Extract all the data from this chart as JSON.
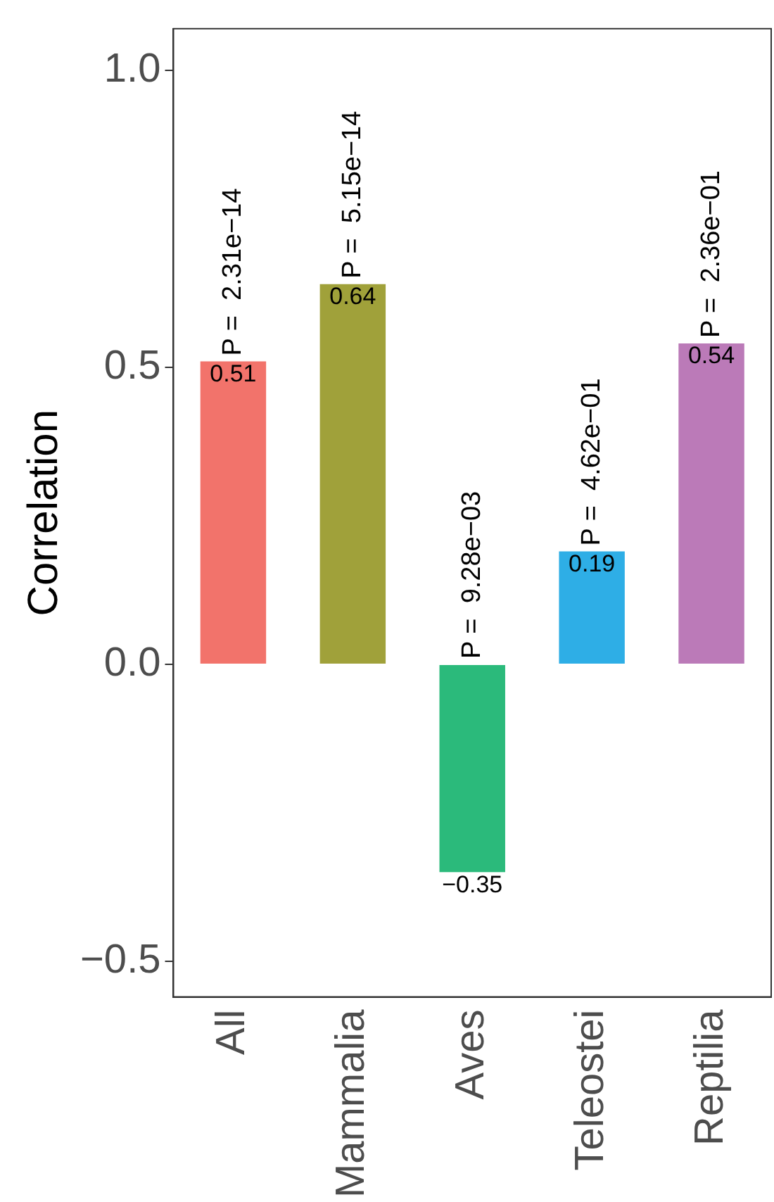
{
  "chart_data": {
    "type": "bar",
    "ylabel": "Correlation",
    "categories": [
      "All",
      "Mammalia",
      "Aves",
      "Teleostei",
      "Reptilia"
    ],
    "values": [
      0.51,
      0.64,
      -0.35,
      0.19,
      0.54
    ],
    "colors": [
      "#f2736b",
      "#a0a13a",
      "#2bba7b",
      "#2eaee6",
      "#bb7ab8"
    ],
    "ylim": [
      -0.56,
      1.07
    ],
    "yticks": [
      {
        "value": -0.5,
        "label": "−0.5"
      },
      {
        "value": 0,
        "label": "0.0"
      },
      {
        "value": 0.5,
        "label": "0.5"
      },
      {
        "value": 1,
        "label": "1.0"
      }
    ],
    "data_labels": true,
    "value_labels": [
      "0.51",
      "0.64",
      "−0.35",
      "0.19",
      "0.54"
    ],
    "grid": false,
    "legend": false,
    "annotations": [
      {
        "text": "P =  2.31e−14",
        "x": "All",
        "y": 0.51
      },
      {
        "text": "P =  5.15e−14",
        "x": "Mammalia",
        "y": 0.64
      },
      {
        "text": "P =  9.28e−03",
        "x": "Aves",
        "y": 0
      },
      {
        "text": "P =  4.62e−01",
        "x": "Teleostei",
        "y": 0.19
      },
      {
        "text": "P =  2.36e−01",
        "x": "Reptilia",
        "y": 0.54
      }
    ]
  }
}
